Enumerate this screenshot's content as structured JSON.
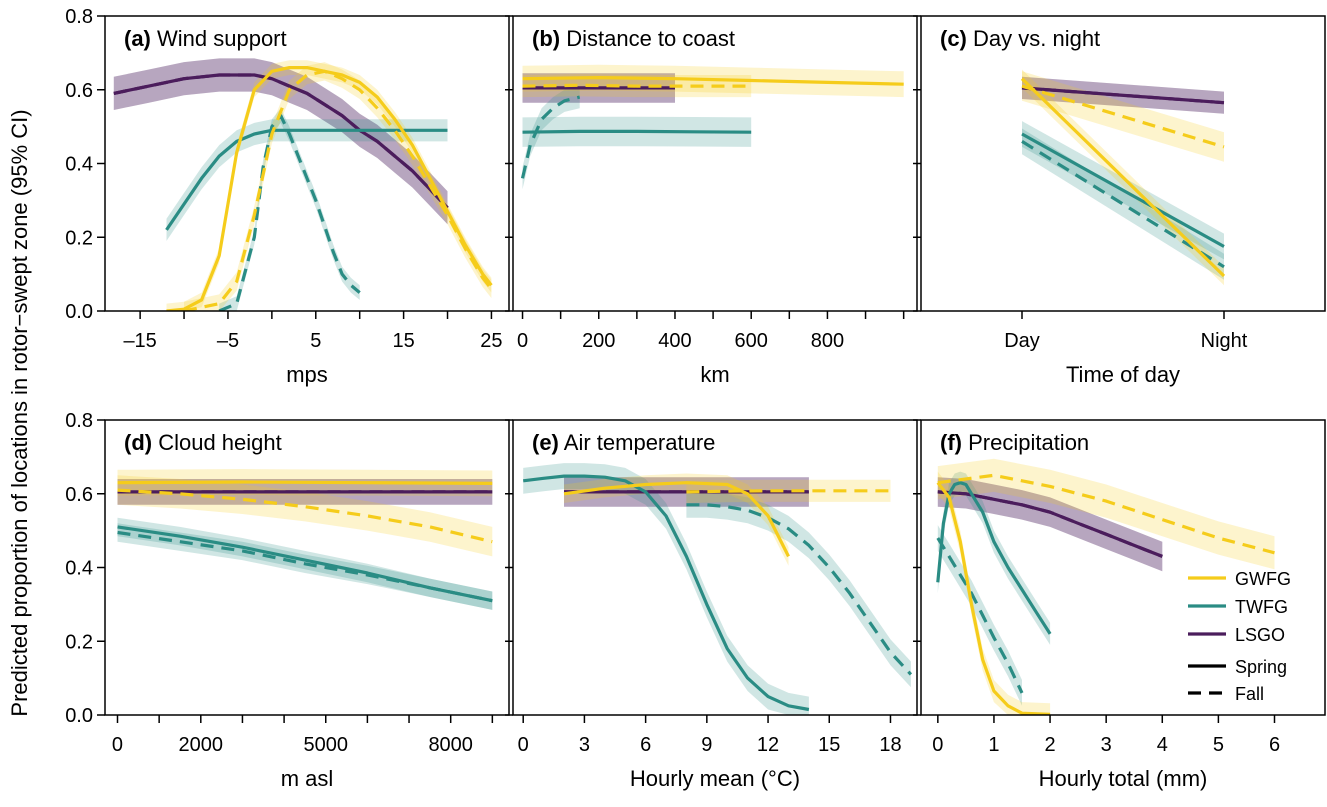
{
  "figure": {
    "ylabel": "Predicted proportion of locations in rotor−swept zone (95% CI)",
    "y_ticks": [
      "0.0",
      "0.2",
      "0.4",
      "0.6",
      "0.8"
    ]
  },
  "colors": {
    "GWFG": "#F5CC1B",
    "TWFG": "#2A8C84",
    "LSGO": "#4B1D5C"
  },
  "legend": {
    "species": [
      {
        "key": "GWFG",
        "label": "GWFG"
      },
      {
        "key": "TWFG",
        "label": "TWFG"
      },
      {
        "key": "LSGO",
        "label": "LSGO"
      }
    ],
    "seasons": [
      {
        "key": "spring",
        "label": "Spring",
        "style": "solid"
      },
      {
        "key": "fall",
        "label": "Fall",
        "style": "dashed"
      }
    ],
    "placement": "panel-f-right"
  },
  "chart_data": [
    {
      "type": "line",
      "panel": "a",
      "title_letter": "(a)",
      "title_text": "Wind support",
      "xlabel": "mps",
      "xlim": [
        -19,
        27
      ],
      "ylim": [
        0,
        0.8
      ],
      "xticks": [
        -15,
        -10,
        -5,
        0,
        5,
        10,
        15,
        20,
        25
      ],
      "xtick_labels": [
        "–15",
        "",
        "–5",
        "",
        "5",
        "",
        "15",
        "",
        "25"
      ],
      "series": [
        {
          "species": "GWFG",
          "season": "spring",
          "ci": 0.02,
          "x": [
            -12,
            -10,
            -8,
            -6,
            -4,
            -2,
            0,
            2,
            4,
            6,
            8,
            10,
            12,
            14,
            16,
            18,
            20,
            22,
            24,
            25
          ],
          "y": [
            0.0,
            0.005,
            0.03,
            0.15,
            0.43,
            0.6,
            0.65,
            0.66,
            0.66,
            0.65,
            0.64,
            0.62,
            0.58,
            0.52,
            0.45,
            0.36,
            0.27,
            0.18,
            0.1,
            0.07
          ]
        },
        {
          "species": "GWFG",
          "season": "fall",
          "ci": 0.025,
          "x": [
            -10,
            -6,
            -4,
            -2,
            0,
            2,
            4,
            6,
            8,
            10,
            12,
            14,
            16,
            18,
            20,
            22,
            24,
            25
          ],
          "y": [
            0.0,
            0.02,
            0.08,
            0.26,
            0.48,
            0.6,
            0.64,
            0.65,
            0.63,
            0.6,
            0.55,
            0.49,
            0.42,
            0.34,
            0.26,
            0.17,
            0.09,
            0.06
          ]
        },
        {
          "species": "TWFG",
          "season": "spring",
          "ci": 0.03,
          "x": [
            -12,
            -10,
            -8,
            -6,
            -4,
            -2,
            0,
            2,
            4,
            6,
            8,
            10,
            12,
            14,
            16,
            18,
            20
          ],
          "y": [
            0.22,
            0.29,
            0.36,
            0.42,
            0.46,
            0.48,
            0.49,
            0.49,
            0.49,
            0.49,
            0.49,
            0.49,
            0.49,
            0.49,
            0.49,
            0.49,
            0.49
          ]
        },
        {
          "species": "TWFG",
          "season": "fall",
          "ci": 0.02,
          "x": [
            -6,
            -4,
            -2,
            -1,
            0,
            1,
            2,
            3,
            4,
            5,
            6,
            7,
            8,
            9,
            10
          ],
          "y": [
            0.0,
            0.02,
            0.2,
            0.39,
            0.5,
            0.53,
            0.48,
            0.42,
            0.36,
            0.3,
            0.23,
            0.16,
            0.1,
            0.07,
            0.05
          ]
        },
        {
          "species": "LSGO",
          "season": "spring",
          "ci": 0.045,
          "x": [
            -18,
            -14,
            -10,
            -6,
            -4,
            -2,
            0,
            2,
            4,
            6,
            8,
            10,
            12,
            14,
            16,
            18,
            20
          ],
          "y": [
            0.59,
            0.61,
            0.63,
            0.64,
            0.64,
            0.64,
            0.63,
            0.61,
            0.59,
            0.56,
            0.53,
            0.49,
            0.46,
            0.42,
            0.38,
            0.33,
            0.28
          ]
        },
        {
          "species": "LSGO",
          "season": "fall",
          "ci": 0.045,
          "x": [
            -18,
            -14,
            -10,
            -6,
            -4,
            -2,
            0,
            2,
            4,
            6,
            8,
            10,
            12,
            14,
            16,
            18,
            20
          ],
          "y": [
            0.59,
            0.61,
            0.63,
            0.64,
            0.64,
            0.64,
            0.63,
            0.61,
            0.59,
            0.56,
            0.53,
            0.49,
            0.46,
            0.42,
            0.38,
            0.33,
            0.28
          ]
        }
      ]
    },
    {
      "type": "line",
      "panel": "b",
      "title_letter": "(b)",
      "title_text": "Distance to coast",
      "xlabel": "km",
      "xlim": [
        -25,
        1035
      ],
      "ylim": [
        0,
        0.8
      ],
      "xticks": [
        0,
        100,
        200,
        300,
        400,
        500,
        600,
        700,
        800,
        900,
        1000
      ],
      "xtick_labels": [
        "0",
        "",
        "200",
        "",
        "400",
        "",
        "600",
        "",
        "800",
        "",
        ""
      ],
      "series": [
        {
          "species": "GWFG",
          "season": "spring",
          "ci": 0.035,
          "x": [
            0,
            200,
            400,
            600,
            800,
            1000
          ],
          "y": [
            0.63,
            0.633,
            0.63,
            0.625,
            0.62,
            0.615
          ]
        },
        {
          "species": "GWFG",
          "season": "fall",
          "ci": 0.03,
          "x": [
            0,
            150,
            300,
            450,
            600
          ],
          "y": [
            0.61,
            0.612,
            0.61,
            0.61,
            0.61
          ]
        },
        {
          "species": "TWFG",
          "season": "spring",
          "ci": 0.04,
          "x": [
            0,
            150,
            300,
            450,
            600
          ],
          "y": [
            0.485,
            0.487,
            0.487,
            0.486,
            0.485
          ]
        },
        {
          "species": "TWFG",
          "season": "fall",
          "ci": 0.03,
          "x": [
            0,
            20,
            50,
            80,
            110,
            150
          ],
          "y": [
            0.36,
            0.45,
            0.52,
            0.55,
            0.57,
            0.58
          ]
        },
        {
          "species": "LSGO",
          "season": "spring",
          "ci": 0.04,
          "x": [
            0,
            100,
            200,
            300,
            400
          ],
          "y": [
            0.605,
            0.605,
            0.605,
            0.605,
            0.605
          ]
        },
        {
          "species": "LSGO",
          "season": "fall",
          "ci": 0.04,
          "x": [
            0,
            100,
            200,
            300,
            400
          ],
          "y": [
            0.605,
            0.605,
            0.605,
            0.605,
            0.605
          ]
        }
      ]
    },
    {
      "type": "line",
      "panel": "c",
      "title_letter": "(c)",
      "title_text": "Day vs. night",
      "xlabel": "Time of day",
      "xlim": [
        0.5,
        2.5
      ],
      "ylim": [
        0,
        0.8
      ],
      "xticks": [
        1,
        2
      ],
      "xtick_labels": [
        "Day",
        "Night"
      ],
      "series": [
        {
          "species": "GWFG",
          "season": "spring",
          "ci": 0.025,
          "x": [
            1,
            2
          ],
          "y": [
            0.63,
            0.095
          ]
        },
        {
          "species": "GWFG",
          "season": "fall",
          "ci": 0.04,
          "x": [
            1,
            2
          ],
          "y": [
            0.61,
            0.445
          ]
        },
        {
          "species": "TWFG",
          "season": "spring",
          "ci": 0.035,
          "x": [
            1,
            2
          ],
          "y": [
            0.48,
            0.175
          ]
        },
        {
          "species": "TWFG",
          "season": "fall",
          "ci": 0.035,
          "x": [
            1,
            2
          ],
          "y": [
            0.46,
            0.12
          ]
        },
        {
          "species": "LSGO",
          "season": "spring",
          "ci": 0.03,
          "x": [
            1,
            2
          ],
          "y": [
            0.605,
            0.565
          ]
        },
        {
          "species": "LSGO",
          "season": "fall",
          "ci": 0.03,
          "x": [
            1,
            2
          ],
          "y": [
            0.605,
            0.565
          ]
        }
      ]
    },
    {
      "type": "line",
      "panel": "d",
      "title_letter": "(d)",
      "title_text": "Cloud height",
      "xlabel": "m asl",
      "xlim": [
        -300,
        9400
      ],
      "ylim": [
        0,
        0.8
      ],
      "xticks": [
        0,
        1000,
        2000,
        3000,
        4000,
        5000,
        6000,
        7000,
        8000,
        9000
      ],
      "xtick_labels": [
        "0",
        "",
        "2000",
        "",
        "",
        "5000",
        "",
        "",
        "8000",
        ""
      ],
      "series": [
        {
          "species": "GWFG",
          "season": "spring",
          "ci": 0.035,
          "x": [
            0,
            3000,
            6000,
            9000
          ],
          "y": [
            0.63,
            0.632,
            0.63,
            0.628
          ]
        },
        {
          "species": "GWFG",
          "season": "fall",
          "ci": 0.04,
          "x": [
            0,
            1500,
            3000,
            4500,
            6000,
            7500,
            9000
          ],
          "y": [
            0.61,
            0.6,
            0.585,
            0.565,
            0.54,
            0.51,
            0.47
          ]
        },
        {
          "species": "TWFG",
          "season": "spring",
          "ci": 0.025,
          "x": [
            0,
            1500,
            3000,
            4500,
            6000,
            7500,
            9000
          ],
          "y": [
            0.51,
            0.485,
            0.455,
            0.42,
            0.385,
            0.345,
            0.31
          ]
        },
        {
          "species": "TWFG",
          "season": "fall",
          "ci": 0.025,
          "x": [
            0,
            1500,
            3000,
            4500,
            6000,
            7500,
            9000
          ],
          "y": [
            0.495,
            0.47,
            0.445,
            0.41,
            0.38,
            0.345,
            0.31
          ]
        },
        {
          "species": "LSGO",
          "season": "spring",
          "ci": 0.035,
          "x": [
            0,
            3000,
            6000,
            9000
          ],
          "y": [
            0.605,
            0.605,
            0.605,
            0.605
          ]
        },
        {
          "species": "LSGO",
          "season": "fall",
          "ci": 0.035,
          "x": [
            0,
            3000,
            6000,
            9000
          ],
          "y": [
            0.605,
            0.605,
            0.605,
            0.605
          ]
        }
      ]
    },
    {
      "type": "line",
      "panel": "e",
      "title_letter": "(e)",
      "title_text": "Air temperature",
      "xlabel": "Hourly mean (°C)",
      "xlim": [
        -0.5,
        19.3
      ],
      "ylim": [
        0,
        0.8
      ],
      "xticks": [
        0,
        3,
        6,
        9,
        12,
        15,
        18
      ],
      "xtick_labels": [
        "0",
        "3",
        "6",
        "9",
        "12",
        "15",
        "18"
      ],
      "series": [
        {
          "species": "GWFG",
          "season": "spring",
          "ci": 0.025,
          "x": [
            2,
            4,
            6,
            8,
            10,
            11,
            12,
            13
          ],
          "y": [
            0.6,
            0.615,
            0.625,
            0.63,
            0.625,
            0.6,
            0.54,
            0.43
          ]
        },
        {
          "species": "GWFG",
          "season": "fall",
          "ci": 0.03,
          "x": [
            8,
            10,
            12,
            14,
            16,
            18
          ],
          "y": [
            0.605,
            0.607,
            0.608,
            0.608,
            0.608,
            0.608
          ]
        },
        {
          "species": "TWFG",
          "season": "spring",
          "ci": 0.035,
          "x": [
            0,
            1,
            2,
            3,
            4,
            5,
            6,
            7,
            8,
            9,
            10,
            11,
            12,
            13,
            14
          ],
          "y": [
            0.635,
            0.642,
            0.648,
            0.648,
            0.645,
            0.635,
            0.605,
            0.54,
            0.43,
            0.3,
            0.18,
            0.1,
            0.05,
            0.025,
            0.015
          ]
        },
        {
          "species": "TWFG",
          "season": "fall",
          "ci": 0.035,
          "x": [
            8,
            9,
            10,
            11,
            12,
            13,
            14,
            15,
            16,
            17,
            18,
            19
          ],
          "y": [
            0.57,
            0.57,
            0.565,
            0.555,
            0.535,
            0.505,
            0.46,
            0.4,
            0.33,
            0.25,
            0.17,
            0.11
          ]
        },
        {
          "species": "LSGO",
          "season": "spring",
          "ci": 0.04,
          "x": [
            2,
            6,
            10,
            14
          ],
          "y": [
            0.605,
            0.605,
            0.605,
            0.605
          ]
        },
        {
          "species": "LSGO",
          "season": "fall",
          "ci": 0.04,
          "x": [
            2,
            6,
            10,
            14
          ],
          "y": [
            0.605,
            0.605,
            0.605,
            0.605
          ]
        }
      ]
    },
    {
      "type": "line",
      "panel": "f",
      "title_letter": "(f)",
      "title_text": "Precipitation",
      "xlabel": "Hourly total (mm)",
      "xlim": [
        -0.3,
        6.9
      ],
      "ylim": [
        0,
        0.8
      ],
      "xticks": [
        0,
        1,
        2,
        3,
        4,
        5,
        6
      ],
      "xtick_labels": [
        "0",
        "1",
        "2",
        "3",
        "4",
        "5",
        "6"
      ],
      "series": [
        {
          "species": "GWFG",
          "season": "spring",
          "ci": 0.03,
          "x": [
            0,
            0.2,
            0.4,
            0.6,
            0.8,
            1.0,
            1.25,
            1.5,
            2.0
          ],
          "y": [
            0.63,
            0.59,
            0.47,
            0.3,
            0.15,
            0.065,
            0.025,
            0.005,
            0.002
          ]
        },
        {
          "species": "GWFG",
          "season": "fall",
          "ci": 0.045,
          "x": [
            0,
            1,
            2,
            3,
            4,
            5,
            6
          ],
          "y": [
            0.63,
            0.65,
            0.62,
            0.58,
            0.53,
            0.48,
            0.44
          ]
        },
        {
          "species": "TWFG",
          "season": "spring",
          "ci": 0.03,
          "x": [
            0,
            0.1,
            0.2,
            0.3,
            0.4,
            0.5,
            0.6,
            0.8,
            1.0,
            1.25,
            1.5,
            1.75,
            2.0
          ],
          "y": [
            0.36,
            0.52,
            0.6,
            0.625,
            0.63,
            0.625,
            0.6,
            0.55,
            0.47,
            0.4,
            0.34,
            0.28,
            0.22
          ]
        },
        {
          "species": "TWFG",
          "season": "fall",
          "ci": 0.035,
          "x": [
            0,
            0.2,
            0.4,
            0.6,
            0.8,
            1.0,
            1.25,
            1.5
          ],
          "y": [
            0.48,
            0.43,
            0.38,
            0.33,
            0.27,
            0.21,
            0.14,
            0.06
          ]
        },
        {
          "species": "LSGO",
          "season": "spring",
          "ci": 0.04,
          "x": [
            0,
            0.5,
            1,
            1.5,
            2,
            2.5,
            3,
            3.5,
            4
          ],
          "y": [
            0.605,
            0.6,
            0.585,
            0.57,
            0.55,
            0.52,
            0.49,
            0.46,
            0.43
          ]
        },
        {
          "species": "LSGO",
          "season": "fall",
          "ci": 0.04,
          "x": [
            0,
            0.5,
            1,
            1.5,
            2,
            2.5,
            3,
            3.5,
            4
          ],
          "y": [
            0.605,
            0.6,
            0.585,
            0.57,
            0.55,
            0.52,
            0.49,
            0.46,
            0.43
          ]
        }
      ]
    }
  ]
}
